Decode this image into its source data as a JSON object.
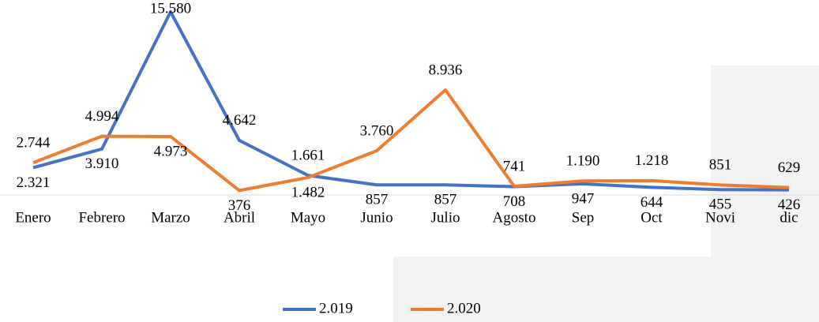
{
  "chart_data": {
    "type": "line",
    "categories": [
      "Enero",
      "Febrero",
      "Marzo",
      "Abril",
      "Mayo",
      "Junio",
      "Julio",
      "Agosto",
      "Sep",
      "Oct",
      "Novi",
      "dic"
    ],
    "series": [
      {
        "name": "2.019",
        "color": "#4472c4",
        "values": [
          2321,
          3910,
          15580,
          4642,
          1661,
          857,
          857,
          708,
          947,
          644,
          455,
          426
        ],
        "value_labels": [
          "2.321",
          "3.910",
          "15.580",
          "4.642",
          "1.661",
          "857",
          "857",
          "708",
          "947",
          "644",
          "455",
          "426"
        ]
      },
      {
        "name": "2.020",
        "color": "#ed7d31",
        "values": [
          2744,
          4994,
          4973,
          376,
          1482,
          3760,
          8936,
          741,
          1190,
          1218,
          851,
          629
        ],
        "value_labels": [
          "2.744",
          "4.994",
          "4.973",
          "376",
          "1.482",
          "3.760",
          "8.936",
          "741",
          "1.190",
          "1.218",
          "851",
          "629"
        ]
      }
    ],
    "legend": "bottom"
  }
}
